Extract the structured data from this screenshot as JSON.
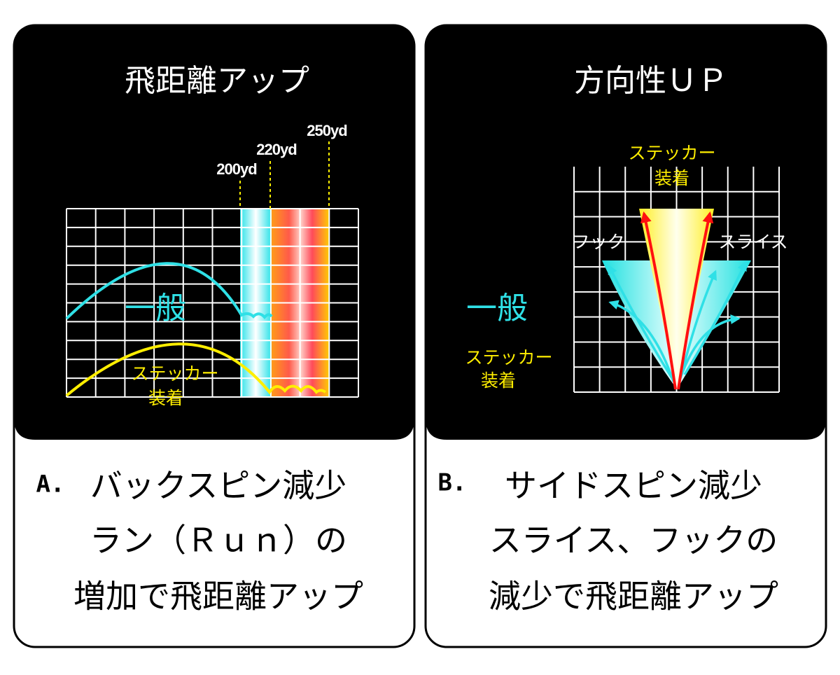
{
  "left_panel": {
    "title": "飛距離アップ",
    "distance_labels": [
      "200yd",
      "220yd",
      "250yd"
    ],
    "general_label": "一般",
    "sticker_label": [
      "ステッカー",
      "装着"
    ],
    "caption_marker": "A.",
    "caption_lines": [
      "バックスピン減少",
      "ラン（Ｒｕｎ）の",
      "増加で飛距離アップ"
    ]
  },
  "right_panel": {
    "title": "方向性ＵＰ",
    "top_sticker_label": [
      "ステッカー",
      "装着"
    ],
    "hook_label": "フック",
    "slice_label": "スライス",
    "general_label": "一般",
    "sticker_label": [
      "ステッカー",
      "装着"
    ],
    "caption_marker": "B.",
    "caption_lines": [
      "サイドスピン減少",
      "スライス、フックの",
      "減少で飛距離アップ"
    ]
  }
}
